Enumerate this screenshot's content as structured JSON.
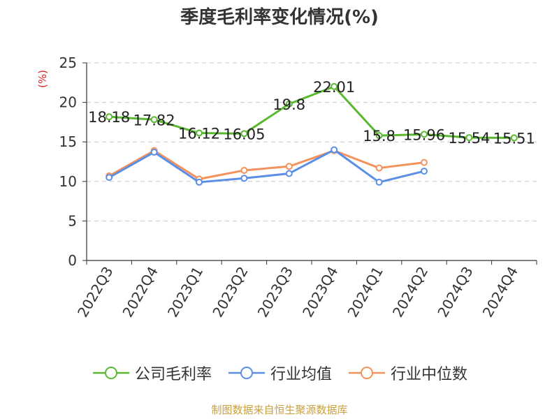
{
  "title": "季度毛利率变化情况(%)",
  "unit_label": "(%)",
  "source": "制图数据来自恒生聚源数据库",
  "chart_data": {
    "type": "line",
    "title": "季度毛利率变化情况(%)",
    "ylabel": "(%)",
    "ylim": [
      0,
      25
    ],
    "yticks": [
      0,
      5,
      10,
      15,
      20,
      25
    ],
    "grid": true,
    "legend_position": "bottom",
    "categories": [
      "2022Q3",
      "2022Q4",
      "2023Q1",
      "2023Q2",
      "2023Q3",
      "2023Q4",
      "2024Q1",
      "2024Q2",
      "2024Q3",
      "2024Q4"
    ],
    "series": [
      {
        "name": "公司毛利率",
        "color": "#5ab92f",
        "labels": true,
        "values": [
          18.18,
          17.82,
          16.12,
          16.05,
          19.8,
          22.01,
          15.8,
          15.96,
          15.54,
          15.51
        ]
      },
      {
        "name": "行业均值",
        "color": "#5b8ee6",
        "labels": false,
        "values": [
          10.5,
          13.7,
          9.9,
          10.4,
          11.0,
          14.0,
          9.9,
          11.3,
          null,
          null
        ]
      },
      {
        "name": "行业中位数",
        "color": "#f4925c",
        "labels": false,
        "values": [
          10.7,
          13.9,
          10.3,
          11.4,
          11.9,
          13.9,
          11.7,
          12.4,
          null,
          null
        ]
      }
    ]
  }
}
